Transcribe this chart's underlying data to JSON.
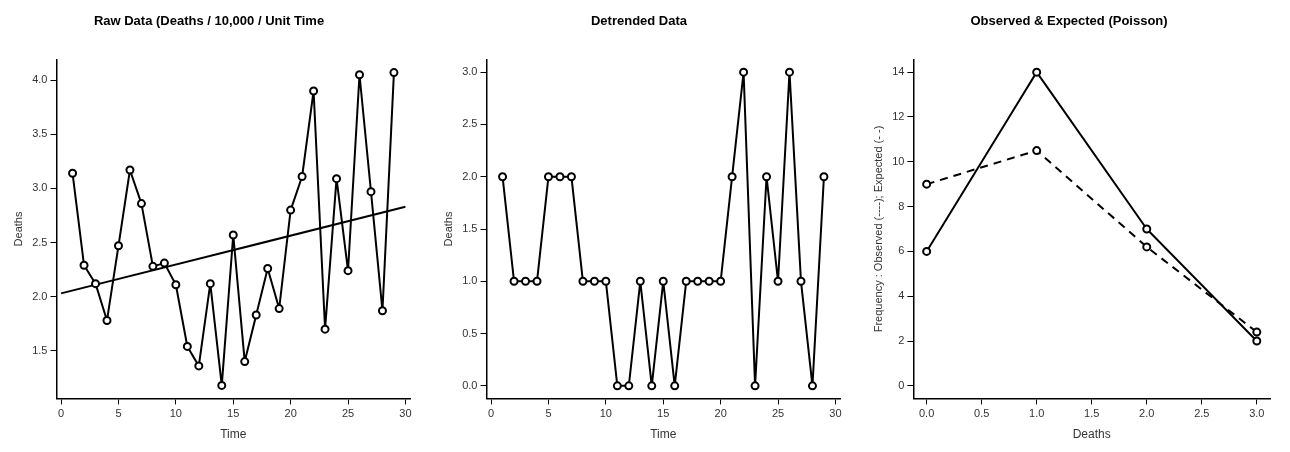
{
  "chart_data": [
    {
      "type": "line",
      "title": "Raw Data (Deaths / 10,000 / Unit Time",
      "xlabel": "Time",
      "ylabel": "Deaths",
      "xlim": [
        -0.4,
        30.4
      ],
      "xticks": [
        0,
        5,
        10,
        15,
        20,
        25,
        30
      ],
      "ylim": [
        1.06,
        4.19
      ],
      "yticks": [
        1.5,
        {
          "value": 2,
          "label": "2.0"
        },
        2.5,
        {
          "value": 3,
          "label": "3.0"
        },
        3.5,
        {
          "value": 4,
          "label": "4.0"
        }
      ],
      "grid": false,
      "legend": false,
      "marker": "circle",
      "line_style": "solid",
      "series": [
        {
          "color": "#000000",
          "x": [
            1,
            2,
            3,
            4,
            5,
            6,
            7,
            8,
            9,
            10,
            11,
            12,
            13,
            14,
            15,
            16,
            17,
            18,
            19,
            20,
            21,
            22,
            23,
            24,
            25,
            26,
            27,
            28,
            29
          ],
          "values": [
            3.14,
            2.29,
            2.12,
            1.78,
            2.47,
            3.17,
            2.86,
            2.28,
            2.31,
            2.11,
            1.54,
            1.36,
            2.12,
            1.18,
            2.57,
            1.4,
            1.83,
            2.26,
            1.89,
            2.8,
            3.11,
            3.9,
            1.7,
            3.09,
            2.24,
            4.05,
            2.97,
            1.87,
            4.07
          ]
        },
        {
          "type": "line",
          "color": "#000000",
          "marker": "none",
          "x": [
            0,
            30
          ],
          "values": [
            2.03,
            2.83
          ]
        }
      ]
    },
    {
      "type": "line",
      "title": "Detrended Data",
      "xlabel": "Time",
      "ylabel": "Deaths",
      "xlim": [
        -0.4,
        30.4
      ],
      "xticks": [
        0,
        5,
        10,
        15,
        20,
        25,
        30
      ],
      "ylim": [
        -0.12,
        3.12
      ],
      "yticks": [
        {
          "value": 0,
          "label": "0.0"
        },
        0.5,
        {
          "value": 1,
          "label": "1.0"
        },
        1.5,
        {
          "value": 2,
          "label": "2.0"
        },
        2.5,
        {
          "value": 3,
          "label": "3.0"
        }
      ],
      "grid": false,
      "legend": false,
      "marker": "circle",
      "line_style": "solid",
      "series": [
        {
          "color": "#000000",
          "x": [
            1,
            2,
            3,
            4,
            5,
            6,
            7,
            8,
            9,
            10,
            11,
            12,
            13,
            14,
            15,
            16,
            17,
            18,
            19,
            20,
            21,
            22,
            23,
            24,
            25,
            26,
            27,
            28,
            29
          ],
          "values": [
            2,
            1,
            1,
            1,
            2,
            2,
            2,
            1,
            1,
            1,
            0,
            0,
            1,
            0,
            1,
            0,
            1,
            1,
            1,
            1,
            2,
            3,
            0,
            2,
            1,
            3,
            1,
            0,
            2
          ]
        }
      ]
    },
    {
      "type": "line",
      "title": "Observed & Expected (Poisson)",
      "xlabel": "Deaths",
      "ylabel": "Frequency : Observed (----); Expected (- -)",
      "xlim": [
        -0.12,
        3.12
      ],
      "xticks": [
        {
          "value": 0,
          "label": "0.0"
        },
        0.5,
        {
          "value": 1,
          "label": "1.0"
        },
        1.5,
        {
          "value": 2,
          "label": "2.0"
        },
        2.5,
        {
          "value": 3,
          "label": "3.0"
        }
      ],
      "ylim": [
        -0.56,
        14.56
      ],
      "yticks": [
        0,
        2,
        4,
        6,
        8,
        10,
        12,
        14
      ],
      "grid": false,
      "legend": false,
      "marker": "circle",
      "series": [
        {
          "color": "#000000",
          "line_style": "solid",
          "x": [
            0,
            1,
            2,
            3
          ],
          "values": [
            6,
            14,
            7,
            2
          ]
        },
        {
          "color": "#000000",
          "line_style": "dashed",
          "x": [
            0,
            1,
            2,
            3
          ],
          "values": [
            9.0,
            10.5,
            6.2,
            2.4
          ]
        }
      ]
    }
  ]
}
